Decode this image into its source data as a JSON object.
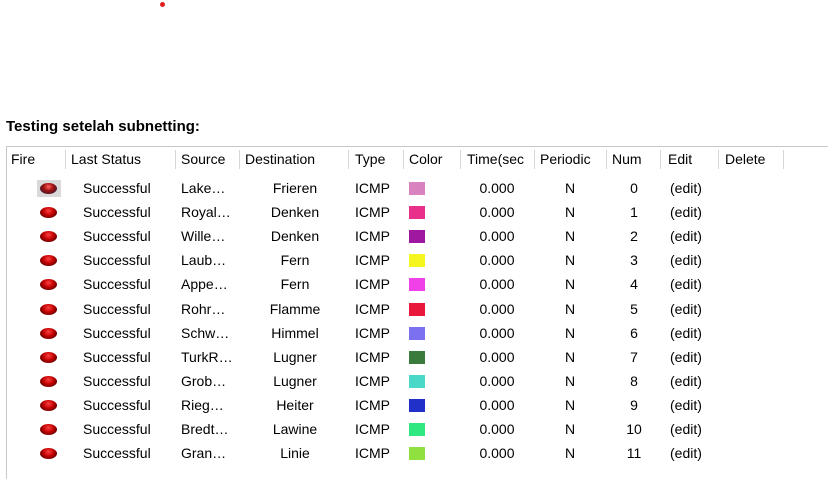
{
  "heading": "Testing setelah subnetting:",
  "columns": {
    "fire": "Fire",
    "last_status": "Last Status",
    "source": "Source",
    "destination": "Destination",
    "type": "Type",
    "color": "Color",
    "time": "Time(sec",
    "periodic": "Periodic",
    "num": "Num",
    "edit": "Edit",
    "delete": "Delete"
  },
  "rows": [
    {
      "status": "Successful",
      "source": "Lake…",
      "destination": "Frieren",
      "type": "ICMP",
      "color": "#d883c0",
      "time": "0.000",
      "periodic": "N",
      "num": "0",
      "edit": "(edit)",
      "selected": true
    },
    {
      "status": "Successful",
      "source": "Royal…",
      "destination": "Denken",
      "type": "ICMP",
      "color": "#e8308a",
      "time": "0.000",
      "periodic": "N",
      "num": "1",
      "edit": "(edit)"
    },
    {
      "status": "Successful",
      "source": "Wille…",
      "destination": "Denken",
      "type": "ICMP",
      "color": "#a0189f",
      "time": "0.000",
      "periodic": "N",
      "num": "2",
      "edit": "(edit)"
    },
    {
      "status": "Successful",
      "source": "Laub…",
      "destination": "Fern",
      "type": "ICMP",
      "color": "#f5f520",
      "time": "0.000",
      "periodic": "N",
      "num": "3",
      "edit": "(edit)"
    },
    {
      "status": "Successful",
      "source": "Appe…",
      "destination": "Fern",
      "type": "ICMP",
      "color": "#f040e8",
      "time": "0.000",
      "periodic": "N",
      "num": "4",
      "edit": "(edit)"
    },
    {
      "status": "Successful",
      "source": "Rohr…",
      "destination": "Flamme",
      "type": "ICMP",
      "color": "#e8183c",
      "time": "0.000",
      "periodic": "N",
      "num": "5",
      "edit": "(edit)"
    },
    {
      "status": "Successful",
      "source": "Schw…",
      "destination": "Himmel",
      "type": "ICMP",
      "color": "#7a70f0",
      "time": "0.000",
      "periodic": "N",
      "num": "6",
      "edit": "(edit)"
    },
    {
      "status": "Successful",
      "source": "TurkR…",
      "destination": "Lugner",
      "type": "ICMP",
      "color": "#3a7a3a",
      "time": "0.000",
      "periodic": "N",
      "num": "7",
      "edit": "(edit)"
    },
    {
      "status": "Successful",
      "source": "Grob…",
      "destination": "Lugner",
      "type": "ICMP",
      "color": "#4ad8c8",
      "time": "0.000",
      "periodic": "N",
      "num": "8",
      "edit": "(edit)"
    },
    {
      "status": "Successful",
      "source": "Rieg…",
      "destination": "Heiter",
      "type": "ICMP",
      "color": "#2030c8",
      "time": "0.000",
      "periodic": "N",
      "num": "9",
      "edit": "(edit)"
    },
    {
      "status": "Successful",
      "source": "Bredt…",
      "destination": "Lawine",
      "type": "ICMP",
      "color": "#30e880",
      "time": "0.000",
      "periodic": "N",
      "num": "10",
      "edit": "(edit)"
    },
    {
      "status": "Successful",
      "source": "Gran…",
      "destination": "Linie",
      "type": "ICMP",
      "color": "#90e040",
      "time": "0.000",
      "periodic": "N",
      "num": "11",
      "edit": "(edit)"
    }
  ]
}
